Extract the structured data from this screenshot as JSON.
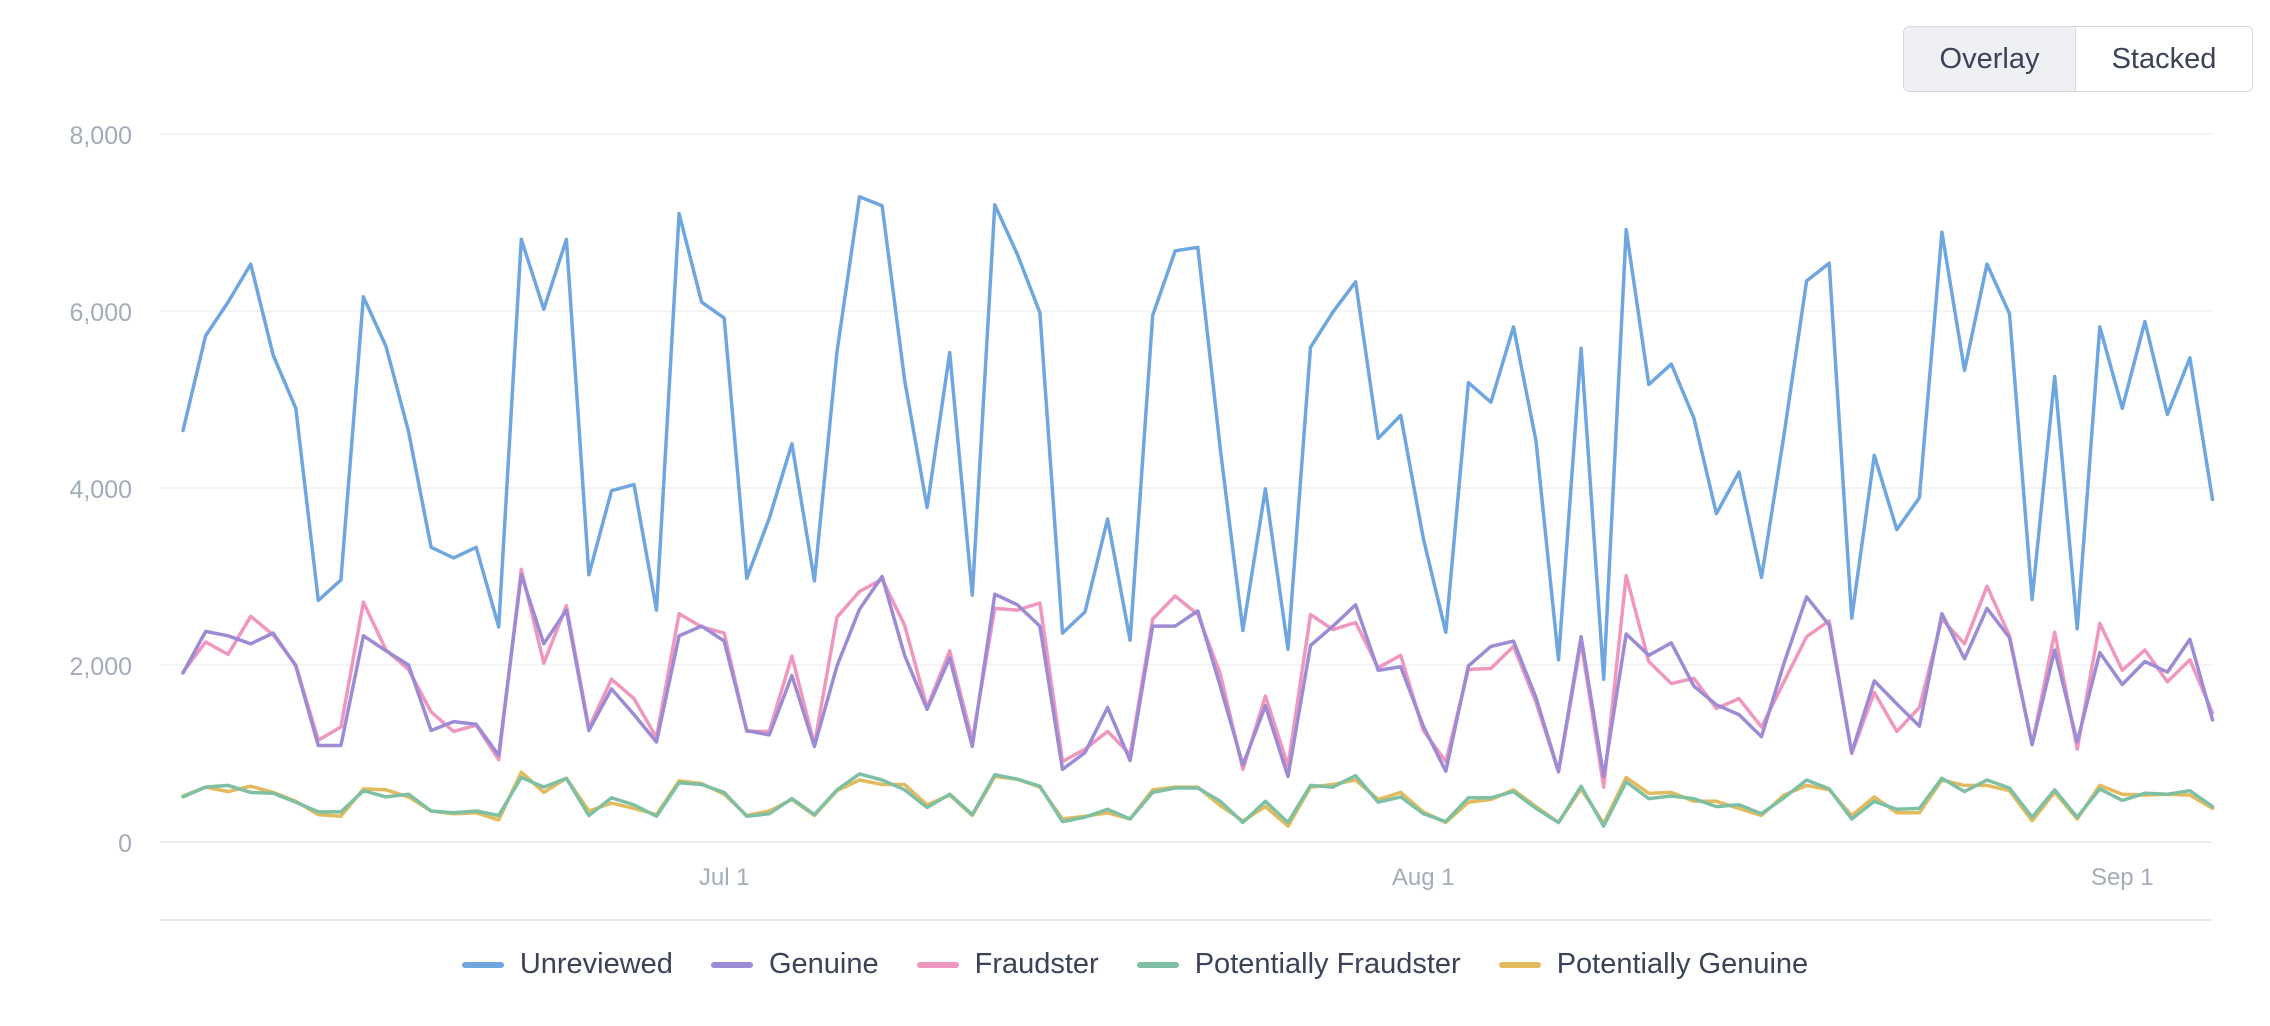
{
  "toolbar": {
    "overlay_label": "Overlay",
    "stacked_label": "Stacked",
    "active": "Overlay"
  },
  "chart_data": {
    "type": "line",
    "title": "",
    "xlabel": "",
    "ylabel": "",
    "ylim": [
      0,
      8000
    ],
    "yticks": [
      0,
      2000,
      4000,
      6000,
      8000
    ],
    "ytick_labels": [
      "0",
      "2,000",
      "4,000",
      "6,000",
      "8,000"
    ],
    "x_start": "2024-06-07",
    "xticks": [
      {
        "date": "2024-07-01",
        "label": "Jul 1"
      },
      {
        "date": "2024-08-01",
        "label": "Aug 1"
      },
      {
        "date": "2024-09-01",
        "label": "Sep 1"
      }
    ],
    "grid": true,
    "legend_position": "bottom",
    "series": [
      {
        "name": "Unreviewed",
        "color": "#6fa6df",
        "values": [
          4650,
          5720,
          6100,
          6530,
          5500,
          4900,
          2730,
          2960,
          6160,
          5600,
          4640,
          3330,
          3210,
          3330,
          2430,
          6810,
          6020,
          6810,
          3020,
          3970,
          4040,
          2620,
          7100,
          6100,
          5920,
          2980,
          3660,
          4500,
          2950,
          5540,
          7290,
          7190,
          5220,
          3780,
          5530,
          2790,
          7200,
          6640,
          5980,
          2360,
          2600,
          3650,
          2280,
          5950,
          6680,
          6720,
          4440,
          2390,
          3990,
          2180,
          5590,
          5990,
          6330,
          4560,
          4820,
          3430,
          2370,
          5190,
          4970,
          5820,
          4530,
          2060,
          5580,
          1840,
          6920,
          5170,
          5400,
          4790,
          3710,
          4180,
          2990,
          4600,
          6340,
          6540,
          2530,
          4370,
          3530,
          3890,
          6890,
          5330,
          6530,
          5970,
          2740,
          5260,
          2410,
          5820,
          4900,
          5880,
          4830,
          5470,
          3870
        ]
      },
      {
        "name": "Genuine",
        "color": "#9d8bd4",
        "values": [
          1910,
          2380,
          2330,
          2240,
          2360,
          1990,
          1090,
          1090,
          2330,
          2160,
          2000,
          1260,
          1360,
          1330,
          980,
          3020,
          2240,
          2620,
          1260,
          1730,
          1440,
          1130,
          2330,
          2440,
          2270,
          1260,
          1210,
          1880,
          1080,
          1990,
          2630,
          3000,
          2110,
          1500,
          2080,
          1080,
          2800,
          2680,
          2440,
          820,
          1010,
          1520,
          920,
          2440,
          2440,
          2610,
          1760,
          870,
          1540,
          740,
          2220,
          2440,
          2680,
          1940,
          1980,
          1310,
          800,
          1990,
          2210,
          2270,
          1630,
          800,
          2320,
          740,
          2350,
          2110,
          2250,
          1760,
          1550,
          1440,
          1190,
          2020,
          2770,
          2450,
          1010,
          1820,
          1560,
          1310,
          2580,
          2070,
          2640,
          2310,
          1100,
          2170,
          1130,
          2140,
          1780,
          2040,
          1920,
          2290,
          1380
        ]
      },
      {
        "name": "Fraudster",
        "color": "#ef97bf",
        "values": [
          1920,
          2260,
          2120,
          2550,
          2340,
          2000,
          1150,
          1300,
          2710,
          2170,
          1950,
          1470,
          1250,
          1320,
          930,
          3080,
          2020,
          2670,
          1290,
          1840,
          1620,
          1180,
          2580,
          2430,
          2360,
          1250,
          1250,
          2100,
          1100,
          2540,
          2830,
          2970,
          2450,
          1520,
          2160,
          1150,
          2640,
          2620,
          2700,
          910,
          1050,
          1250,
          990,
          2520,
          2780,
          2570,
          1900,
          820,
          1650,
          860,
          2570,
          2400,
          2480,
          1970,
          2110,
          1260,
          910,
          1950,
          1960,
          2210,
          1580,
          790,
          2260,
          620,
          3010,
          2040,
          1790,
          1850,
          1510,
          1620,
          1300,
          1810,
          2320,
          2500,
          1000,
          1690,
          1250,
          1520,
          2520,
          2240,
          2890,
          2330,
          1100,
          2370,
          1050,
          2470,
          1940,
          2170,
          1810,
          2060,
          1460
        ]
      },
      {
        "name": "Potentially Fraudster",
        "color": "#7fc0a5",
        "values": [
          510,
          620,
          640,
          560,
          550,
          450,
          340,
          340,
          580,
          510,
          540,
          350,
          330,
          350,
          300,
          730,
          620,
          720,
          300,
          500,
          420,
          290,
          670,
          650,
          560,
          290,
          320,
          490,
          310,
          590,
          770,
          700,
          590,
          390,
          540,
          310,
          760,
          710,
          630,
          230,
          280,
          370,
          260,
          560,
          610,
          610,
          460,
          220,
          460,
          220,
          640,
          620,
          750,
          450,
          510,
          320,
          230,
          500,
          500,
          570,
          380,
          220,
          630,
          180,
          680,
          490,
          520,
          490,
          400,
          420,
          320,
          500,
          700,
          600,
          260,
          460,
          370,
          380,
          720,
          570,
          700,
          610,
          280,
          590,
          280,
          600,
          470,
          550,
          540,
          580,
          400
        ]
      },
      {
        "name": "Potentially Genuine",
        "color": "#e2bb5e",
        "values": [
          520,
          620,
          570,
          630,
          560,
          460,
          310,
          290,
          600,
          590,
          510,
          350,
          320,
          330,
          250,
          790,
          560,
          720,
          350,
          440,
          380,
          310,
          690,
          660,
          540,
          300,
          350,
          480,
          300,
          580,
          700,
          650,
          650,
          420,
          530,
          300,
          740,
          710,
          620,
          260,
          290,
          330,
          260,
          590,
          620,
          620,
          410,
          240,
          400,
          180,
          620,
          650,
          700,
          480,
          560,
          340,
          220,
          450,
          480,
          590,
          400,
          220,
          600,
          210,
          730,
          550,
          560,
          460,
          460,
          380,
          300,
          530,
          640,
          590,
          300,
          510,
          330,
          330,
          700,
          640,
          640,
          580,
          240,
          560,
          260,
          640,
          540,
          530,
          540,
          530,
          380
        ]
      }
    ]
  }
}
